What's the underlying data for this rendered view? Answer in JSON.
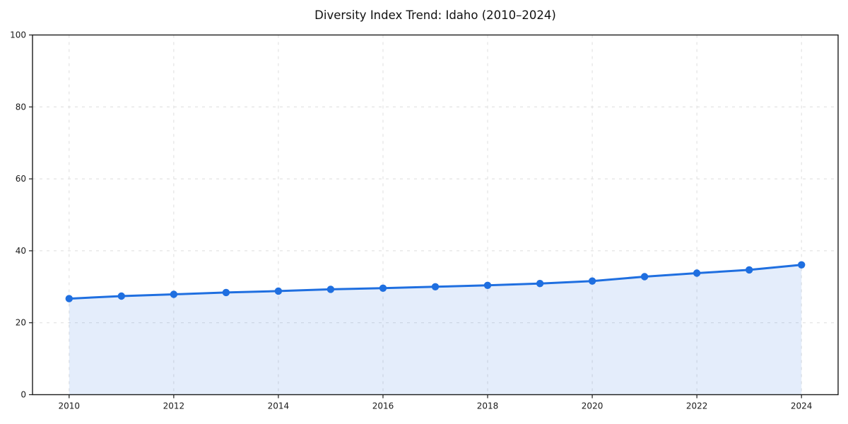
{
  "figure": {
    "title": "Diversity Index Trend: Idaho (2010–2024)"
  },
  "chart_data": {
    "type": "line",
    "area_fill": true,
    "title": "Diversity Index Trend: Idaho (2010–2024)",
    "x": [
      2010,
      2011,
      2012,
      2013,
      2014,
      2015,
      2016,
      2017,
      2018,
      2019,
      2020,
      2021,
      2022,
      2023,
      2024
    ],
    "series": [
      {
        "name": "Diversity Index",
        "values": [
          26.7,
          27.4,
          27.9,
          28.4,
          28.8,
          29.3,
          29.6,
          30.0,
          30.4,
          30.9,
          31.6,
          32.8,
          33.8,
          34.7,
          36.1
        ]
      }
    ],
    "xlabel": "",
    "ylabel": "",
    "xlim": [
      2009.3,
      2024.7
    ],
    "ylim": [
      0,
      100
    ],
    "x_ticks": [
      2010,
      2012,
      2014,
      2016,
      2018,
      2020,
      2022,
      2024
    ],
    "x_tick_labels": [
      "2010",
      "2012",
      "2014",
      "2016",
      "2018",
      "2020",
      "2022",
      "2024"
    ],
    "y_ticks": [
      0,
      20,
      40,
      60,
      80,
      100
    ],
    "y_tick_labels": [
      "0",
      "20",
      "40",
      "60",
      "80",
      "100"
    ],
    "grid": {
      "visible": true,
      "style": "dashed",
      "color": "#dedede"
    },
    "legend": {
      "visible": false
    },
    "marker": "circle",
    "colors": {
      "line": "#1f6fe0",
      "marker": "#1f6fe0",
      "fill": "#1f6fe0",
      "fill_opacity": 0.12,
      "spine": "#1c1c1c",
      "text": "#111111",
      "background": "#ffffff"
    }
  }
}
